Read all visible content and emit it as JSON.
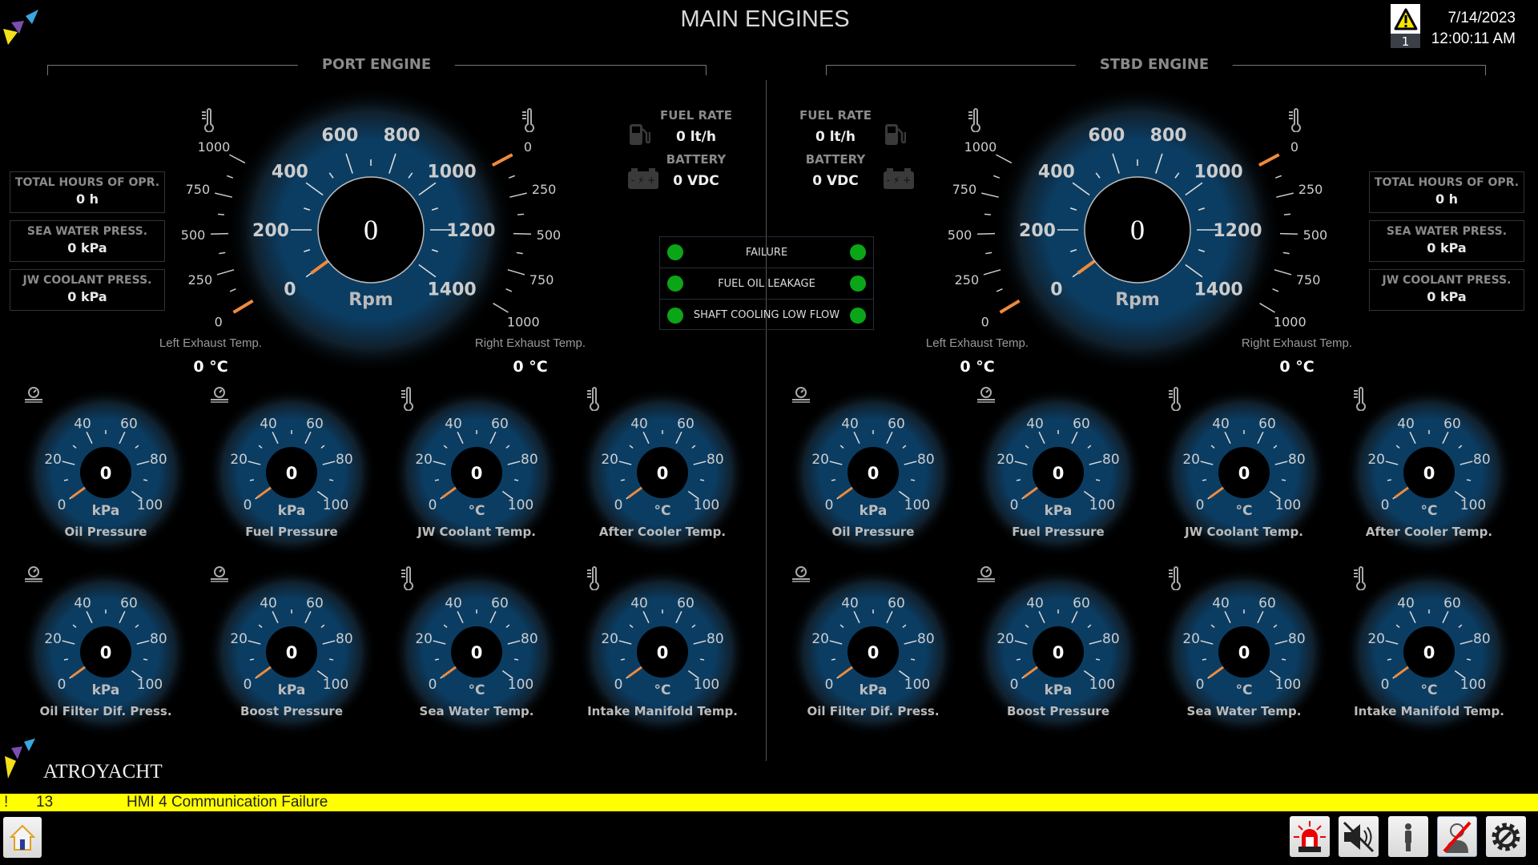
{
  "header": {
    "title": "MAIN ENGINES",
    "alarm_count": "1",
    "date": "7/14/2023",
    "time": "12:00:11 AM"
  },
  "colors": {
    "led_ok": "#0aa617",
    "needle": "#f08a3c",
    "gauge_blue": "#0b3d63",
    "alarm_bar": "#ffff00"
  },
  "engines": [
    {
      "id": "port",
      "title": "PORT ENGINE",
      "info": [
        {
          "label": "TOTAL HOURS OF OPR.",
          "value": "0  h"
        },
        {
          "label": "SEA WATER PRESS.",
          "value": "0  kPa"
        },
        {
          "label": "JW COOLANT PRESS.",
          "value": "0  kPa"
        }
      ],
      "fuel_rate": {
        "label": "FUEL RATE",
        "value": "0 lt/h"
      },
      "battery": {
        "label": "BATTERY",
        "value": "0 VDC"
      },
      "rpm": {
        "value": "0",
        "unit": "Rpm",
        "ticks": [
          "0",
          "200",
          "400",
          "600",
          "800",
          "1000",
          "1200",
          "1400"
        ],
        "level": 0
      },
      "left_exhaust": {
        "label": "Left Exhaust Temp.",
        "value": "0 °C",
        "ticks": [
          "0",
          "250",
          "500",
          "750",
          "1000"
        ],
        "level": 0
      },
      "right_exhaust": {
        "label": "Right Exhaust Temp.",
        "value": "0 °C",
        "ticks": [
          "0",
          "250",
          "500",
          "750",
          "1000"
        ],
        "level": 0
      },
      "gauges": [
        {
          "name": "Oil Pressure",
          "unit": "kPa",
          "value": "0",
          "icon": "pressure-gauge-icon"
        },
        {
          "name": "Fuel Pressure",
          "unit": "kPa",
          "value": "0",
          "icon": "pressure-gauge-icon"
        },
        {
          "name": "JW Coolant Temp.",
          "unit": "°C",
          "value": "0",
          "icon": "thermometer-icon"
        },
        {
          "name": "After Cooler Temp.",
          "unit": "°C",
          "value": "0",
          "icon": "thermometer-icon"
        },
        {
          "name": "Oil Filter Dif. Press.",
          "unit": "kPa",
          "value": "0",
          "icon": "pressure-gauge-icon"
        },
        {
          "name": "Boost Pressure",
          "unit": "kPa",
          "value": "0",
          "icon": "pressure-gauge-icon"
        },
        {
          "name": "Sea Water Temp.",
          "unit": "°C",
          "value": "0",
          "icon": "thermometer-icon"
        },
        {
          "name": "Intake Manifold Temp.",
          "unit": "°C",
          "value": "0",
          "icon": "thermometer-icon"
        }
      ]
    },
    {
      "id": "stbd",
      "title": "STBD ENGINE",
      "info": [
        {
          "label": "TOTAL HOURS OF OPR.",
          "value": "0  h"
        },
        {
          "label": "SEA WATER PRESS.",
          "value": "0  kPa"
        },
        {
          "label": "JW COOLANT PRESS.",
          "value": "0  kPa"
        }
      ],
      "fuel_rate": {
        "label": "FUEL RATE",
        "value": "0 lt/h"
      },
      "battery": {
        "label": "BATTERY",
        "value": "0 VDC"
      },
      "rpm": {
        "value": "0",
        "unit": "Rpm",
        "ticks": [
          "0",
          "200",
          "400",
          "600",
          "800",
          "1000",
          "1200",
          "1400"
        ],
        "level": 0
      },
      "left_exhaust": {
        "label": "Left Exhaust Temp.",
        "value": "0 °C",
        "ticks": [
          "0",
          "250",
          "500",
          "750",
          "1000"
        ],
        "level": 0
      },
      "right_exhaust": {
        "label": "Right Exhaust Temp.",
        "value": "0 °C",
        "ticks": [
          "0",
          "250",
          "500",
          "750",
          "1000"
        ],
        "level": 0
      },
      "gauges": [
        {
          "name": "Oil Pressure",
          "unit": "kPa",
          "value": "0",
          "icon": "pressure-gauge-icon"
        },
        {
          "name": "Fuel Pressure",
          "unit": "kPa",
          "value": "0",
          "icon": "pressure-gauge-icon"
        },
        {
          "name": "JW Coolant Temp.",
          "unit": "°C",
          "value": "0",
          "icon": "thermometer-icon"
        },
        {
          "name": "After Cooler Temp.",
          "unit": "°C",
          "value": "0",
          "icon": "thermometer-icon"
        },
        {
          "name": "Oil Filter Dif. Press.",
          "unit": "kPa",
          "value": "0",
          "icon": "pressure-gauge-icon"
        },
        {
          "name": "Boost Pressure",
          "unit": "kPa",
          "value": "0",
          "icon": "pressure-gauge-icon"
        },
        {
          "name": "Sea Water Temp.",
          "unit": "°C",
          "value": "0",
          "icon": "thermometer-icon"
        },
        {
          "name": "Intake Manifold Temp.",
          "unit": "°C",
          "value": "0",
          "icon": "thermometer-icon"
        }
      ]
    }
  ],
  "small_gauge_ticks": [
    "0",
    "20",
    "40",
    "60",
    "80",
    "100"
  ],
  "status_lights": [
    {
      "label": "FAILURE"
    },
    {
      "label": "FUEL OIL LEAKAGE"
    },
    {
      "label": "SHAFT COOLING LOW FLOW"
    }
  ],
  "brand": "ATROYACHT",
  "alarm_bar": {
    "marker": "!",
    "number": "13",
    "message": "HMI 4 Communication Failure"
  },
  "toolbar": {
    "buttons": [
      "home",
      "alarm-beacon",
      "mute",
      "user",
      "logout",
      "settings"
    ]
  }
}
